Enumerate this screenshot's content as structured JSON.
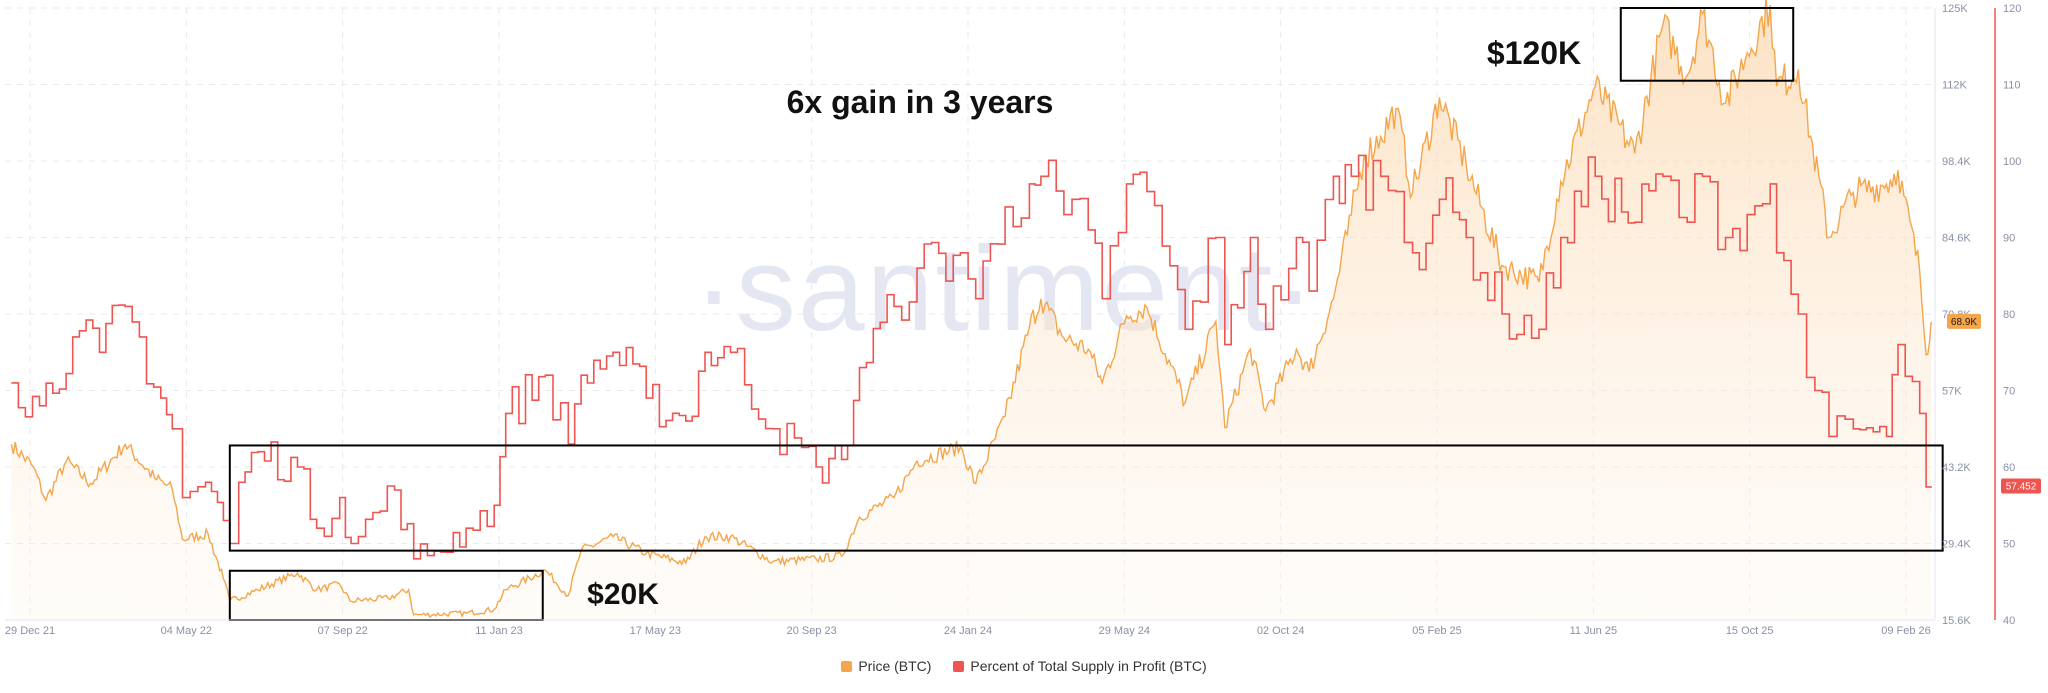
{
  "chart_data": {
    "type": "line",
    "watermark": "·santiment·",
    "x_ticks": [
      "29 Dec 21",
      "04 May 22",
      "07 Sep 22",
      "11 Jan 23",
      "17 May 23",
      "20 Sep 23",
      "24 Jan 24",
      "29 May 24",
      "02 Oct 24",
      "05 Feb 25",
      "11 Jun 25",
      "15 Oct 25",
      "09 Feb 26"
    ],
    "price_axis": {
      "ticks": [
        "15.6K",
        "29.4K",
        "43.2K",
        "57K",
        "70.8K",
        "84.6K",
        "98.4K",
        "112K",
        "125K"
      ],
      "min": 15.6,
      "max": 125
    },
    "percent_axis": {
      "ticks": [
        "40",
        "50",
        "60",
        "70",
        "80",
        "90",
        "100",
        "110",
        "120"
      ],
      "min": 40,
      "max": 120
    },
    "series": [
      {
        "name": "Price (BTC)",
        "color": "#f5a54a",
        "current_label": "68.9K",
        "points": [
          [
            "2021-12-29",
            47
          ],
          [
            "2022-01-15",
            43
          ],
          [
            "2022-01-25",
            37
          ],
          [
            "2022-02-10",
            44
          ],
          [
            "2022-03-01",
            40
          ],
          [
            "2022-03-28",
            47
          ],
          [
            "2022-04-20",
            41
          ],
          [
            "2022-05-04",
            39
          ],
          [
            "2022-05-12",
            30
          ],
          [
            "2022-06-01",
            31
          ],
          [
            "2022-06-13",
            23
          ],
          [
            "2022-06-18",
            19
          ],
          [
            "2022-07-10",
            21
          ],
          [
            "2022-08-10",
            24
          ],
          [
            "2022-08-25",
            21
          ],
          [
            "2022-09-12",
            22
          ],
          [
            "2022-09-20",
            19
          ],
          [
            "2022-10-20",
            19.5
          ],
          [
            "2022-11-05",
            21
          ],
          [
            "2022-11-09",
            16.5
          ],
          [
            "2022-12-20",
            16.8
          ],
          [
            "2023-01-11",
            17.5
          ],
          [
            "2023-01-20",
            21
          ],
          [
            "2023-02-20",
            24.5
          ],
          [
            "2023-03-10",
            20
          ],
          [
            "2023-03-20",
            28
          ],
          [
            "2023-04-14",
            30.5
          ],
          [
            "2023-05-10",
            27.5
          ],
          [
            "2023-06-10",
            25.8
          ],
          [
            "2023-06-25",
            30.5
          ],
          [
            "2023-07-15",
            30.5
          ],
          [
            "2023-08-17",
            26
          ],
          [
            "2023-09-20",
            26.5
          ],
          [
            "2023-10-10",
            27
          ],
          [
            "2023-10-24",
            34
          ],
          [
            "2023-11-20",
            37.5
          ],
          [
            "2023-12-08",
            44
          ],
          [
            "2024-01-11",
            46.5
          ],
          [
            "2024-01-23",
            40
          ],
          [
            "2024-02-15",
            52
          ],
          [
            "2024-03-05",
            68
          ],
          [
            "2024-03-14",
            73
          ],
          [
            "2024-04-01",
            66
          ],
          [
            "2024-04-20",
            64
          ],
          [
            "2024-05-01",
            58
          ],
          [
            "2024-05-20",
            70
          ],
          [
            "2024-06-05",
            71.5
          ],
          [
            "2024-07-05",
            54.5
          ],
          [
            "2024-07-29",
            69
          ],
          [
            "2024-08-05",
            50
          ],
          [
            "2024-08-25",
            64
          ],
          [
            "2024-09-06",
            53
          ],
          [
            "2024-09-30",
            64
          ],
          [
            "2024-10-10",
            60
          ],
          [
            "2024-10-29",
            73
          ],
          [
            "2024-11-12",
            88
          ],
          [
            "2024-11-22",
            98.5
          ],
          [
            "2024-12-05",
            102
          ],
          [
            "2024-12-17",
            107
          ],
          [
            "2024-12-30",
            92
          ],
          [
            "2025-01-20",
            109
          ],
          [
            "2025-02-10",
            97
          ],
          [
            "2025-03-10",
            79
          ],
          [
            "2025-04-08",
            76
          ],
          [
            "2025-04-25",
            94
          ],
          [
            "2025-05-22",
            111
          ],
          [
            "2025-06-22",
            99
          ],
          [
            "2025-07-14",
            122
          ],
          [
            "2025-08-02",
            113
          ],
          [
            "2025-08-14",
            124
          ],
          [
            "2025-09-01",
            108
          ],
          [
            "2025-09-18",
            117
          ],
          [
            "2025-10-06",
            125.5
          ],
          [
            "2025-10-11",
            111
          ],
          [
            "2025-10-28",
            114
          ],
          [
            "2025-11-21",
            84
          ],
          [
            "2025-12-10",
            92
          ],
          [
            "2026-01-05",
            93.5
          ],
          [
            "2026-01-14",
            96
          ],
          [
            "2026-01-31",
            78
          ],
          [
            "2026-02-05",
            63
          ],
          [
            "2026-02-09",
            68.9
          ]
        ]
      },
      {
        "name": "Percent of Total Supply in Profit (BTC)",
        "color": "#ee5550",
        "current_label": "57.452",
        "points": [
          [
            "2021-12-29",
            71
          ],
          [
            "2022-01-20",
            68
          ],
          [
            "2022-02-15",
            77
          ],
          [
            "2022-03-08",
            75
          ],
          [
            "2022-03-28",
            81
          ],
          [
            "2022-04-25",
            69
          ],
          [
            "2022-05-04",
            65
          ],
          [
            "2022-05-12",
            56
          ],
          [
            "2022-05-30",
            58
          ],
          [
            "2022-06-13",
            53
          ],
          [
            "2022-06-18",
            50
          ],
          [
            "2022-06-25",
            58
          ],
          [
            "2022-07-10",
            62
          ],
          [
            "2022-08-10",
            60
          ],
          [
            "2022-08-25",
            52
          ],
          [
            "2022-09-12",
            56
          ],
          [
            "2022-09-21",
            50
          ],
          [
            "2022-10-25",
            57
          ],
          [
            "2022-11-09",
            48
          ],
          [
            "2022-11-25",
            49
          ],
          [
            "2022-12-20",
            52
          ],
          [
            "2023-01-11",
            55
          ],
          [
            "2023-01-20",
            67
          ],
          [
            "2023-02-20",
            72
          ],
          [
            "2023-03-10",
            63
          ],
          [
            "2023-03-20",
            72
          ],
          [
            "2023-04-14",
            75
          ],
          [
            "2023-05-10",
            69
          ],
          [
            "2023-06-10",
            66
          ],
          [
            "2023-06-25",
            75
          ],
          [
            "2023-07-15",
            75
          ],
          [
            "2023-08-17",
            65
          ],
          [
            "2023-09-20",
            60
          ],
          [
            "2023-10-10",
            61
          ],
          [
            "2023-10-24",
            73
          ],
          [
            "2023-11-20",
            81
          ],
          [
            "2023-12-08",
            86
          ],
          [
            "2024-01-11",
            88
          ],
          [
            "2024-01-23",
            82
          ],
          [
            "2024-02-15",
            94
          ],
          [
            "2024-03-05",
            97
          ],
          [
            "2024-03-14",
            98
          ],
          [
            "2024-04-01",
            93
          ],
          [
            "2024-04-20",
            91
          ],
          [
            "2024-05-01",
            82
          ],
          [
            "2024-05-20",
            97
          ],
          [
            "2024-06-05",
            96
          ],
          [
            "2024-07-05",
            78
          ],
          [
            "2024-07-29",
            90
          ],
          [
            "2024-08-05",
            76
          ],
          [
            "2024-08-25",
            90
          ],
          [
            "2024-09-06",
            78
          ],
          [
            "2024-09-30",
            90
          ],
          [
            "2024-10-10",
            83
          ],
          [
            "2024-10-29",
            98
          ],
          [
            "2024-11-12",
            98
          ],
          [
            "2024-12-05",
            98
          ],
          [
            "2024-12-17",
            96
          ],
          [
            "2024-12-30",
            88
          ],
          [
            "2025-01-20",
            95
          ],
          [
            "2025-02-10",
            90
          ],
          [
            "2025-03-10",
            80
          ],
          [
            "2025-04-08",
            78
          ],
          [
            "2025-04-25",
            90
          ],
          [
            "2025-05-22",
            98
          ],
          [
            "2025-06-22",
            92
          ],
          [
            "2025-07-14",
            98
          ],
          [
            "2025-08-02",
            92
          ],
          [
            "2025-08-14",
            98
          ],
          [
            "2025-09-01",
            90
          ],
          [
            "2025-09-18",
            93
          ],
          [
            "2025-10-06",
            97
          ],
          [
            "2025-10-11",
            88
          ],
          [
            "2025-10-28",
            80
          ],
          [
            "2025-11-10",
            70
          ],
          [
            "2025-11-21",
            64
          ],
          [
            "2025-12-10",
            65
          ],
          [
            "2026-01-05",
            64
          ],
          [
            "2026-01-14",
            76
          ],
          [
            "2026-01-31",
            67
          ],
          [
            "2026-02-05",
            57.4
          ],
          [
            "2026-02-09",
            57.452
          ]
        ]
      }
    ],
    "annotations": [
      {
        "text": "6x gain in 3 years"
      },
      {
        "text": "$120K"
      },
      {
        "text": "$20K"
      }
    ],
    "annotation_boxes": [
      {
        "from": "2025-06-11",
        "to": "2025-10-24",
        "y_from": 112,
        "y_to": 125
      },
      {
        "from": "2022-06-18",
        "to": "2023-02-18",
        "y_from": 15.6,
        "y_to": 24.4
      },
      {
        "from": "2022-06-18",
        "to": "2026-02-18",
        "y_from": 28,
        "y_to": 46.8
      }
    ],
    "legend_placement": "bottom-center"
  }
}
